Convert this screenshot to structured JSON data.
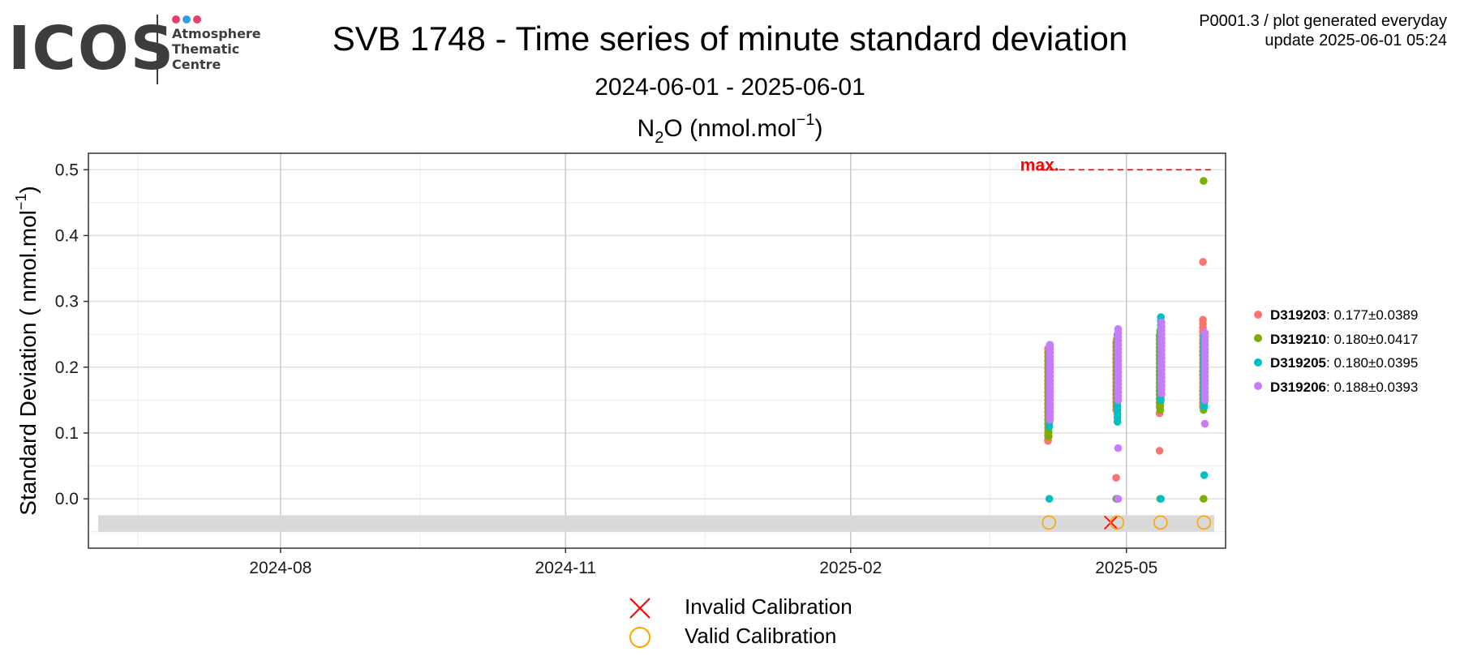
{
  "logo": {
    "text": "ICOS",
    "subtitle_lines": [
      "Atmosphere",
      "Thematic",
      "Centre"
    ],
    "dot_colors": [
      "#e83e6c",
      "#2f9fe3",
      "#e83e6c"
    ],
    "text_color": "#3d3d3d"
  },
  "header": {
    "title": "SVB 1748 - Time series of minute standard deviation",
    "subtitle": "2024-06-01 - 2025-06-01",
    "meta_line1": "P0001.3 / plot generated everyday",
    "meta_line2": "update  2025-06-01 05:24"
  },
  "chart_data": {
    "type": "scatter",
    "panel_title": {
      "base": "N",
      "sub": "2",
      "mid": "O (nmol.mol",
      "sup": "−1",
      "end": ")"
    },
    "ylabel": {
      "prefix": "Standard Deviation ( nmol.mol",
      "sup": "−1",
      "suffix": ")"
    },
    "xlabel": "",
    "x_range": [
      "2024-05-31",
      "2025-06-02"
    ],
    "ylim": [
      -0.075,
      0.525
    ],
    "x_ticks": [
      {
        "date": "2024-08-01",
        "label": "2024-08"
      },
      {
        "date": "2024-11-01",
        "label": "2024-11"
      },
      {
        "date": "2025-02-01",
        "label": "2025-02"
      },
      {
        "date": "2025-05-01",
        "label": "2025-05"
      }
    ],
    "x_minor_dates": [
      "2024-06-16",
      "2024-09-15",
      "2024-12-16",
      "2025-03-18"
    ],
    "y_ticks": [
      0.0,
      0.1,
      0.2,
      0.3,
      0.4,
      0.5
    ],
    "y_tick_labels": [
      "0.0",
      "0.1",
      "0.2",
      "0.3",
      "0.4",
      "0.5"
    ],
    "grid": true,
    "max_line": {
      "label": "max.",
      "value": 0.5,
      "start_date": "2025-04-03",
      "color": "#ff0000"
    },
    "calibration_band": {
      "from": -0.05,
      "to": -0.025,
      "color": "#d9d9d9"
    },
    "series": [
      {
        "name": "D319203",
        "stats": ": 0.177±0.0389",
        "color": "#f8766d",
        "points": [
          {
            "date": "2025-04-06",
            "min": 0.09,
            "max": 0.23,
            "outliers": [
              0.088
            ]
          },
          {
            "date": "2025-04-28",
            "min": 0.135,
            "max": 0.24,
            "outliers": [
              0.032,
              0.0
            ]
          },
          {
            "date": "2025-05-12",
            "min": 0.14,
            "max": 0.25,
            "outliers": [
              0.13,
              0.073
            ]
          },
          {
            "date": "2025-05-26",
            "min": 0.14,
            "max": 0.275,
            "outliers": [
              0.36
            ]
          }
        ]
      },
      {
        "name": "D319210",
        "stats": ": 0.180±0.0417",
        "color": "#7cae00",
        "points": [
          {
            "date": "2025-04-06",
            "min": 0.095,
            "max": 0.225,
            "outliers": [
              0.095
            ]
          },
          {
            "date": "2025-04-28",
            "min": 0.14,
            "max": 0.245,
            "outliers": [
              0.0
            ]
          },
          {
            "date": "2025-05-12",
            "min": 0.135,
            "max": 0.26,
            "outliers": [
              0.0
            ]
          },
          {
            "date": "2025-05-26",
            "min": 0.135,
            "max": 0.24,
            "outliers": [
              0.0,
              0.483
            ]
          }
        ]
      },
      {
        "name": "D319205",
        "stats": ": 0.180±0.0395",
        "color": "#00bfc4",
        "points": [
          {
            "date": "2025-04-06",
            "min": 0.11,
            "max": 0.22,
            "outliers": [
              0.0
            ]
          },
          {
            "date": "2025-04-28",
            "min": 0.117,
            "max": 0.25,
            "outliers": [
              0.0
            ]
          },
          {
            "date": "2025-05-12",
            "min": 0.15,
            "max": 0.28,
            "outliers": [
              0.0
            ]
          },
          {
            "date": "2025-05-26",
            "min": 0.14,
            "max": 0.25,
            "outliers": [
              0.036
            ]
          }
        ]
      },
      {
        "name": "D319206",
        "stats": ": 0.188±0.0393",
        "color": "#c77cff",
        "points": [
          {
            "date": "2025-04-06",
            "min": 0.12,
            "max": 0.235,
            "outliers": []
          },
          {
            "date": "2025-04-28",
            "min": 0.15,
            "max": 0.258,
            "outliers": [
              0.077,
              0.0
            ]
          },
          {
            "date": "2025-05-12",
            "min": 0.16,
            "max": 0.27,
            "outliers": []
          },
          {
            "date": "2025-05-26",
            "min": 0.15,
            "max": 0.255,
            "outliers": [
              0.114
            ]
          }
        ]
      }
    ],
    "calibrations": [
      {
        "date": "2025-04-06",
        "valid": true
      },
      {
        "date": "2025-04-26",
        "valid": false
      },
      {
        "date": "2025-04-28",
        "valid": true
      },
      {
        "date": "2025-05-12",
        "valid": true
      },
      {
        "date": "2025-05-26",
        "valid": true
      }
    ],
    "calibration_y": -0.036,
    "calibration_legend": [
      {
        "label": "Invalid Calibration",
        "color": "#ff0000",
        "symbol": "cross"
      },
      {
        "label": "Valid Calibration",
        "color": "#ffa500",
        "symbol": "circle"
      }
    ]
  }
}
